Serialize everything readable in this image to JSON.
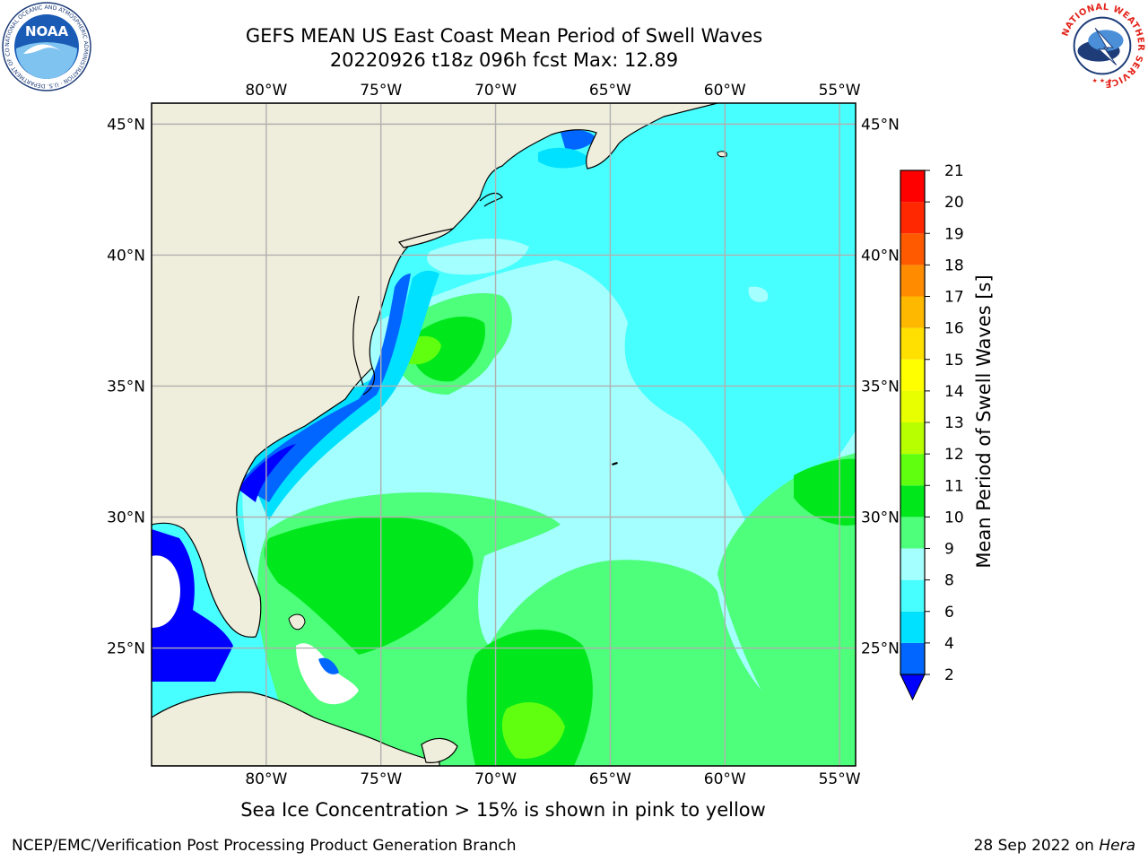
{
  "header": {
    "title_line1": "GEFS MEAN US East Coast Mean Period of Swell Waves",
    "title_line2": "20220926 t18z 096h fcst   Max: 12.89"
  },
  "logos": {
    "left": {
      "name": "noaa-logo",
      "text": "NOAA",
      "ring_text": "NATIONAL OCEANIC AND ATMOSPHERIC ADMINISTRATION · U.S. DEPARTMENT OF COMMERCE"
    },
    "right": {
      "name": "nws-logo",
      "ring_text": "NATIONAL WEATHER SERVICE"
    }
  },
  "map": {
    "lon_labels": [
      "80°W",
      "75°W",
      "70°W",
      "65°W",
      "60°W",
      "55°W"
    ],
    "lat_labels": [
      "45°N",
      "40°N",
      "35°N",
      "30°N",
      "25°N"
    ],
    "lon_values": [
      -80,
      -75,
      -70,
      -65,
      -60,
      -55
    ],
    "lat_values": [
      45,
      40,
      35,
      30,
      25
    ],
    "extent": {
      "lon": [
        -85,
        -54.3
      ],
      "lat": [
        20.5,
        45.8
      ]
    },
    "colors": {
      "land": "#efeedc",
      "ocean_default": "#48ffff",
      "grid": "#b0b0b0",
      "coast": "#000000",
      "no_data": "#ffffff"
    }
  },
  "colorbar": {
    "label": "Mean Period of Swell Waves [s]",
    "tick_labels": [
      "2",
      "4",
      "6",
      "8",
      "9",
      "10",
      "11",
      "12",
      "13",
      "14",
      "15",
      "16",
      "17",
      "18",
      "19",
      "20",
      "21"
    ],
    "levels": [
      2,
      4,
      6,
      8,
      9,
      10,
      11,
      12,
      13,
      14,
      15,
      16,
      17,
      18,
      19,
      20,
      21
    ],
    "colors": [
      "#0066ff",
      "#00e1ff",
      "#48ffff",
      "#a4ffff",
      "#4dff7a",
      "#00e81c",
      "#60ff10",
      "#b8ff00",
      "#e8ff00",
      "#ffff00",
      "#ffe000",
      "#ffb800",
      "#ff8c00",
      "#ff5a00",
      "#ff2800",
      "#ff0000"
    ],
    "under_color": "#0000ff",
    "extend": "min"
  },
  "footer": {
    "ice_note": "Sea Ice Concentration > 15% is shown in pink to yellow",
    "left": "NCEP/EMC/Verification Post Processing Product Generation Branch",
    "right_prefix": "28 Sep 2022 on ",
    "right_host": "Hera"
  }
}
